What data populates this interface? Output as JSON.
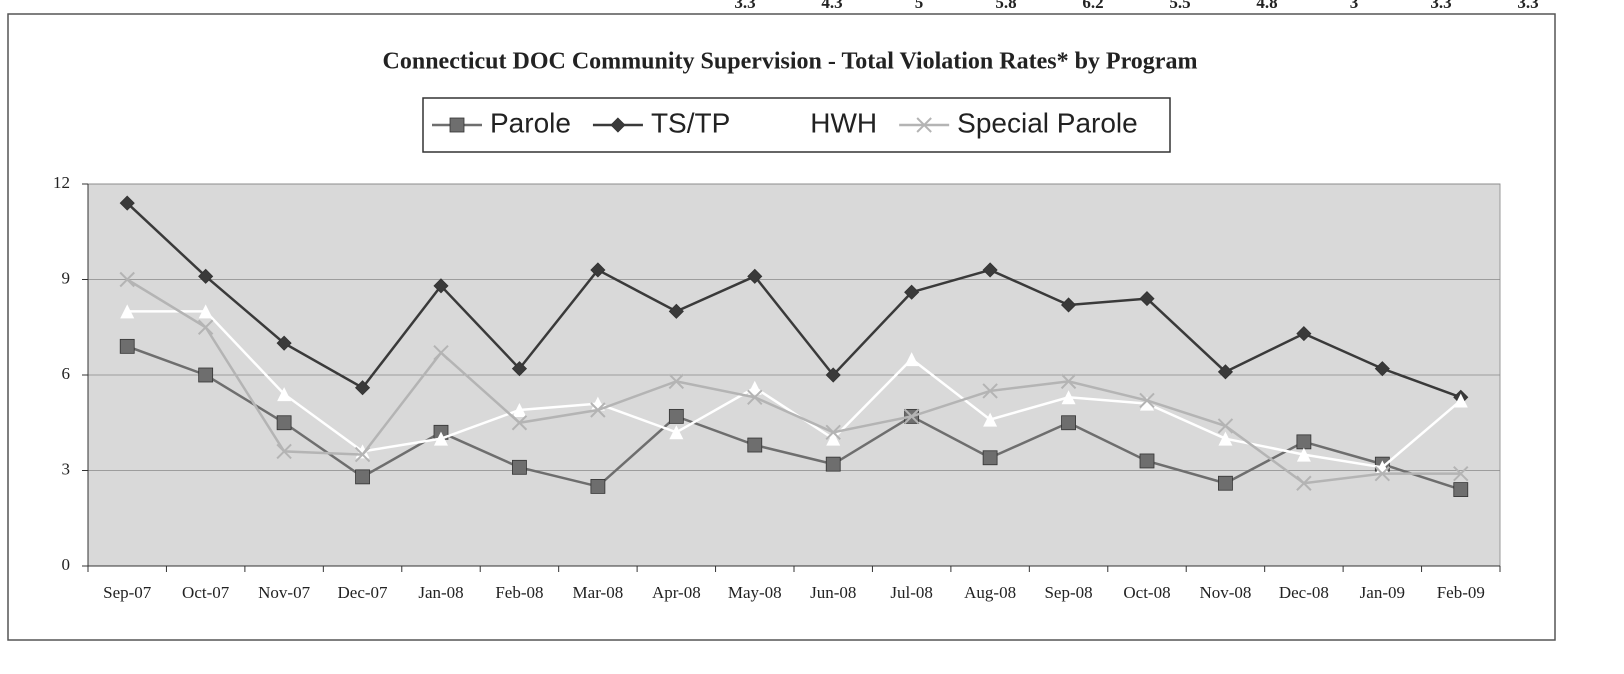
{
  "cropped_row": [
    "3.3",
    "4.3",
    "5",
    "5.8",
    "6.2",
    "5.5",
    "4.8",
    "3",
    "3.3",
    "3.3"
  ],
  "chart_data": {
    "type": "line",
    "title": "Connecticut DOC Community Supervision - Total Violation Rates* by Program",
    "categories": [
      "Sep-07",
      "Oct-07",
      "Nov-07",
      "Dec-07",
      "Jan-08",
      "Feb-08",
      "Mar-08",
      "Apr-08",
      "May-08",
      "Jun-08",
      "Jul-08",
      "Aug-08",
      "Sep-08",
      "Oct-08",
      "Nov-08",
      "Dec-08",
      "Jan-09",
      "Feb-09"
    ],
    "series": [
      {
        "name": "Parole",
        "color": "#6e6e6e",
        "marker": "square",
        "values": [
          6.9,
          6.0,
          4.5,
          2.8,
          4.2,
          3.1,
          2.5,
          4.7,
          3.8,
          3.2,
          4.7,
          3.4,
          4.5,
          3.3,
          2.6,
          3.9,
          3.2,
          2.4
        ]
      },
      {
        "name": "TS/TP",
        "color": "#3a3a3a",
        "marker": "diamond",
        "values": [
          11.4,
          9.1,
          7.0,
          5.6,
          8.8,
          6.2,
          9.3,
          8.0,
          9.1,
          6.0,
          8.6,
          9.3,
          8.2,
          8.4,
          6.1,
          7.3,
          6.2,
          5.3
        ]
      },
      {
        "name": "HWH",
        "color": "#ffffff",
        "marker": "triangle",
        "values": [
          8.0,
          8.0,
          5.4,
          3.6,
          4.0,
          4.9,
          5.1,
          4.2,
          5.6,
          4.0,
          6.5,
          4.6,
          5.3,
          5.1,
          4.0,
          3.5,
          3.1,
          5.2
        ]
      },
      {
        "name": "Special Parole",
        "color": "#b4b4b4",
        "marker": "x",
        "values": [
          9.0,
          7.5,
          3.6,
          3.5,
          6.7,
          4.5,
          4.9,
          5.8,
          5.3,
          4.2,
          4.7,
          5.5,
          5.8,
          5.2,
          4.4,
          2.6,
          2.9,
          2.9
        ]
      }
    ],
    "ylim": [
      0,
      12
    ],
    "yticks": [
      0,
      3,
      6,
      9,
      12
    ],
    "grid": true,
    "legend": "top"
  }
}
